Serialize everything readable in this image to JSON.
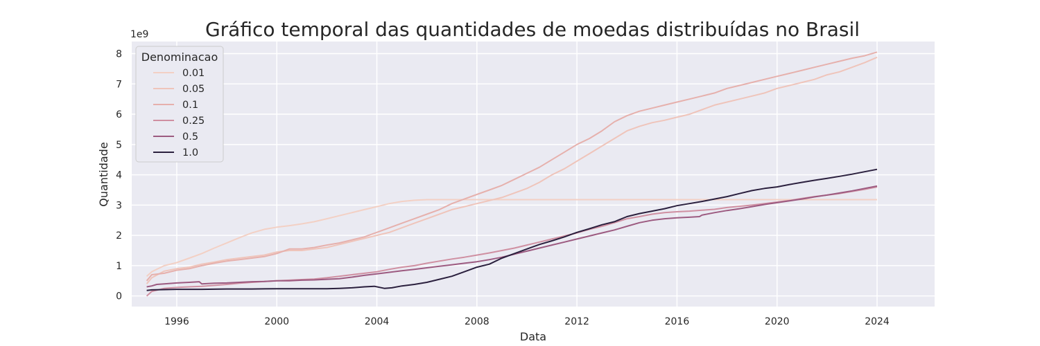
{
  "chart_data": {
    "type": "line",
    "title": "Gráfico temporal das quantidades de moedas distribuídas no Brasil",
    "xlabel": "Data",
    "ylabel": "Quantidade",
    "y_offset_text": "1e9",
    "xlim": [
      1994.2,
      2026.3
    ],
    "ylim": [
      -0.35,
      8.4
    ],
    "y_scale_note": "values in units of 1e9",
    "xticks": [
      1996,
      2000,
      2004,
      2008,
      2012,
      2016,
      2020,
      2024
    ],
    "yticks": [
      0,
      1,
      2,
      3,
      4,
      5,
      6,
      7,
      8
    ],
    "xtick_labels": [
      "1996",
      "2000",
      "2004",
      "2008",
      "2012",
      "2016",
      "2020",
      "2024"
    ],
    "ytick_labels": [
      "0",
      "1",
      "2",
      "3",
      "4",
      "5",
      "6",
      "7",
      "8"
    ],
    "grid": true,
    "legend": {
      "title": "Denominacao",
      "placement": "top-left"
    },
    "series": [
      {
        "name": "0.01",
        "color": "#f3d0c4",
        "x": [
          1994.8,
          1995.0,
          1995.5,
          1996.0,
          1996.5,
          1997.0,
          1997.5,
          1998.0,
          1998.5,
          1999.0,
          1999.5,
          2000.0,
          2000.5,
          2001.0,
          2001.5,
          2002.0,
          2002.5,
          2003.0,
          2003.5,
          2004.0,
          2004.5,
          2005.0,
          2005.5,
          2006.0,
          2024.0
        ],
        "y": [
          0.65,
          0.8,
          1.0,
          1.1,
          1.25,
          1.4,
          1.58,
          1.75,
          1.92,
          2.08,
          2.2,
          2.27,
          2.32,
          2.38,
          2.45,
          2.55,
          2.65,
          2.75,
          2.85,
          2.95,
          3.05,
          3.12,
          3.16,
          3.18,
          3.18
        ]
      },
      {
        "name": "0.05",
        "color": "#efc4ba",
        "x": [
          1994.8,
          1995.0,
          1995.5,
          1996.0,
          1996.5,
          1997.0,
          1997.5,
          1998.0,
          1998.5,
          1999.0,
          1999.5,
          2000.0,
          2000.5,
          2001.0,
          2001.5,
          2002.0,
          2002.5,
          2003.0,
          2003.5,
          2004.0,
          2004.5,
          2005.0,
          2005.5,
          2006.0,
          2006.5,
          2007.0,
          2007.5,
          2008.0,
          2008.5,
          2009.0,
          2009.5,
          2010.0,
          2010.5,
          2011.0,
          2011.5,
          2012.0,
          2012.5,
          2013.0,
          2013.5,
          2014.0,
          2014.5,
          2015.0,
          2015.5,
          2016.0,
          2016.5,
          2017.0,
          2017.5,
          2018.0,
          2018.5,
          2019.0,
          2019.5,
          2020.0,
          2020.5,
          2021.0,
          2021.5,
          2022.0,
          2022.5,
          2023.0,
          2023.5,
          2024.0
        ],
        "y": [
          0.4,
          0.6,
          0.82,
          0.9,
          0.95,
          1.05,
          1.12,
          1.2,
          1.25,
          1.3,
          1.35,
          1.45,
          1.5,
          1.5,
          1.55,
          1.6,
          1.7,
          1.8,
          1.9,
          2.0,
          2.1,
          2.25,
          2.4,
          2.55,
          2.7,
          2.85,
          2.95,
          3.05,
          3.15,
          3.25,
          3.4,
          3.55,
          3.75,
          4.0,
          4.2,
          4.45,
          4.7,
          4.95,
          5.2,
          5.45,
          5.6,
          5.72,
          5.8,
          5.9,
          6.0,
          6.15,
          6.3,
          6.4,
          6.5,
          6.6,
          6.7,
          6.85,
          6.95,
          7.05,
          7.15,
          7.3,
          7.4,
          7.55,
          7.7,
          7.88
        ]
      },
      {
        "name": "0.1",
        "color": "#e6b0ac",
        "x": [
          1994.8,
          1995.0,
          1995.5,
          1996.0,
          1996.5,
          1997.0,
          1997.5,
          1998.0,
          1998.5,
          1999.0,
          1999.5,
          2000.0,
          2000.5,
          2001.0,
          2001.5,
          2002.0,
          2002.5,
          2003.0,
          2003.5,
          2004.0,
          2004.5,
          2005.0,
          2005.5,
          2006.0,
          2006.5,
          2007.0,
          2007.5,
          2008.0,
          2008.5,
          2009.0,
          2009.5,
          2010.0,
          2010.5,
          2011.0,
          2011.5,
          2012.0,
          2012.5,
          2013.0,
          2013.5,
          2014.0,
          2014.5,
          2015.0,
          2015.5,
          2016.0,
          2016.5,
          2017.0,
          2017.5,
          2018.0,
          2018.5,
          2019.0,
          2019.5,
          2020.0,
          2020.5,
          2021.0,
          2021.5,
          2022.0,
          2022.5,
          2023.0,
          2023.5,
          2024.0
        ],
        "y": [
          0.5,
          0.7,
          0.75,
          0.85,
          0.9,
          1.0,
          1.08,
          1.15,
          1.2,
          1.25,
          1.3,
          1.4,
          1.55,
          1.55,
          1.6,
          1.68,
          1.75,
          1.85,
          1.95,
          2.1,
          2.25,
          2.4,
          2.55,
          2.7,
          2.85,
          3.05,
          3.2,
          3.35,
          3.5,
          3.65,
          3.85,
          4.05,
          4.25,
          4.5,
          4.75,
          5.0,
          5.2,
          5.45,
          5.75,
          5.95,
          6.1,
          6.2,
          6.3,
          6.4,
          6.5,
          6.6,
          6.7,
          6.85,
          6.95,
          7.05,
          7.15,
          7.25,
          7.35,
          7.45,
          7.55,
          7.65,
          7.75,
          7.85,
          7.93,
          8.05
        ]
      },
      {
        "name": "0.25",
        "color": "#cf8fa1",
        "x": [
          1994.8,
          1995.0,
          1995.5,
          1996.0,
          1996.5,
          1997.0,
          1997.5,
          1998.0,
          1998.5,
          1999.0,
          1999.5,
          2000.0,
          2000.5,
          2001.0,
          2001.5,
          2002.0,
          2002.5,
          2003.0,
          2003.5,
          2004.0,
          2004.5,
          2005.0,
          2005.5,
          2006.0,
          2006.5,
          2007.0,
          2007.5,
          2008.0,
          2008.5,
          2009.0,
          2009.5,
          2010.0,
          2010.5,
          2011.0,
          2011.5,
          2012.0,
          2012.5,
          2013.0,
          2013.5,
          2014.0,
          2014.5,
          2015.0,
          2015.5,
          2016.0,
          2016.5,
          2017.0,
          2017.5,
          2018.0,
          2018.5,
          2019.0,
          2019.5,
          2020.0,
          2020.5,
          2021.0,
          2021.5,
          2022.0,
          2022.5,
          2023.0,
          2023.5,
          2024.0
        ],
        "y": [
          0.0,
          0.15,
          0.25,
          0.28,
          0.3,
          0.32,
          0.35,
          0.38,
          0.42,
          0.45,
          0.48,
          0.5,
          0.52,
          0.54,
          0.56,
          0.6,
          0.65,
          0.7,
          0.75,
          0.8,
          0.88,
          0.95,
          1.0,
          1.08,
          1.15,
          1.22,
          1.28,
          1.35,
          1.42,
          1.5,
          1.58,
          1.68,
          1.78,
          1.88,
          1.98,
          2.08,
          2.2,
          2.3,
          2.42,
          2.55,
          2.62,
          2.7,
          2.75,
          2.78,
          2.8,
          2.83,
          2.86,
          2.92,
          2.96,
          3.0,
          3.05,
          3.1,
          3.15,
          3.22,
          3.28,
          3.33,
          3.38,
          3.45,
          3.52,
          3.6
        ]
      },
      {
        "name": "0.5",
        "color": "#9c5a80",
        "x": [
          1994.8,
          1995.0,
          1995.2,
          1995.5,
          1996.0,
          1996.5,
          1996.9,
          1997.0,
          1997.5,
          1998.0,
          1998.5,
          1999.0,
          1999.5,
          2000.0,
          2000.5,
          2001.0,
          2001.5,
          2002.0,
          2002.5,
          2003.0,
          2003.5,
          2004.0,
          2004.5,
          2005.0,
          2005.5,
          2006.0,
          2006.5,
          2007.0,
          2007.5,
          2008.0,
          2008.5,
          2009.0,
          2009.5,
          2010.0,
          2010.5,
          2011.0,
          2011.5,
          2012.0,
          2012.5,
          2013.0,
          2013.5,
          2014.0,
          2014.5,
          2015.0,
          2015.5,
          2016.0,
          2016.5,
          2016.9,
          2017.0,
          2017.5,
          2018.0,
          2018.5,
          2019.0,
          2019.5,
          2020.0,
          2020.5,
          2021.0,
          2021.5,
          2022.0,
          2022.5,
          2023.0,
          2023.5,
          2024.0
        ],
        "y": [
          0.3,
          0.33,
          0.38,
          0.4,
          0.43,
          0.45,
          0.47,
          0.4,
          0.42,
          0.43,
          0.45,
          0.47,
          0.48,
          0.5,
          0.5,
          0.52,
          0.53,
          0.55,
          0.57,
          0.62,
          0.68,
          0.73,
          0.78,
          0.83,
          0.88,
          0.93,
          0.98,
          1.03,
          1.08,
          1.13,
          1.2,
          1.28,
          1.38,
          1.48,
          1.58,
          1.68,
          1.78,
          1.88,
          1.98,
          2.08,
          2.18,
          2.3,
          2.42,
          2.5,
          2.55,
          2.58,
          2.6,
          2.62,
          2.67,
          2.75,
          2.82,
          2.88,
          2.95,
          3.02,
          3.08,
          3.14,
          3.2,
          3.27,
          3.33,
          3.4,
          3.47,
          3.55,
          3.63
        ]
      },
      {
        "name": "1.0",
        "color": "#2a1f3d",
        "x": [
          1994.8,
          1995.0,
          1995.5,
          1996.0,
          1997.0,
          1998.0,
          1999.0,
          2000.0,
          2001.0,
          2002.0,
          2002.5,
          2003.0,
          2003.5,
          2003.9,
          2004.3,
          2004.6,
          2005.0,
          2005.5,
          2006.0,
          2006.5,
          2007.0,
          2007.5,
          2008.0,
          2008.5,
          2009.0,
          2009.5,
          2010.0,
          2010.5,
          2011.0,
          2011.5,
          2012.0,
          2012.5,
          2013.0,
          2013.5,
          2014.0,
          2014.5,
          2015.0,
          2015.5,
          2016.0,
          2016.5,
          2017.0,
          2017.5,
          2018.0,
          2018.5,
          2019.0,
          2019.5,
          2020.0,
          2020.5,
          2021.0,
          2021.5,
          2022.0,
          2022.5,
          2023.0,
          2023.5,
          2024.0
        ],
        "y": [
          0.18,
          0.2,
          0.21,
          0.22,
          0.22,
          0.23,
          0.23,
          0.24,
          0.24,
          0.24,
          0.25,
          0.27,
          0.3,
          0.32,
          0.25,
          0.27,
          0.33,
          0.38,
          0.45,
          0.55,
          0.65,
          0.8,
          0.95,
          1.05,
          1.25,
          1.4,
          1.55,
          1.7,
          1.82,
          1.95,
          2.1,
          2.22,
          2.35,
          2.45,
          2.62,
          2.72,
          2.8,
          2.88,
          2.98,
          3.05,
          3.12,
          3.2,
          3.28,
          3.38,
          3.48,
          3.55,
          3.6,
          3.68,
          3.75,
          3.82,
          3.88,
          3.95,
          4.02,
          4.1,
          4.18
        ]
      }
    ]
  }
}
